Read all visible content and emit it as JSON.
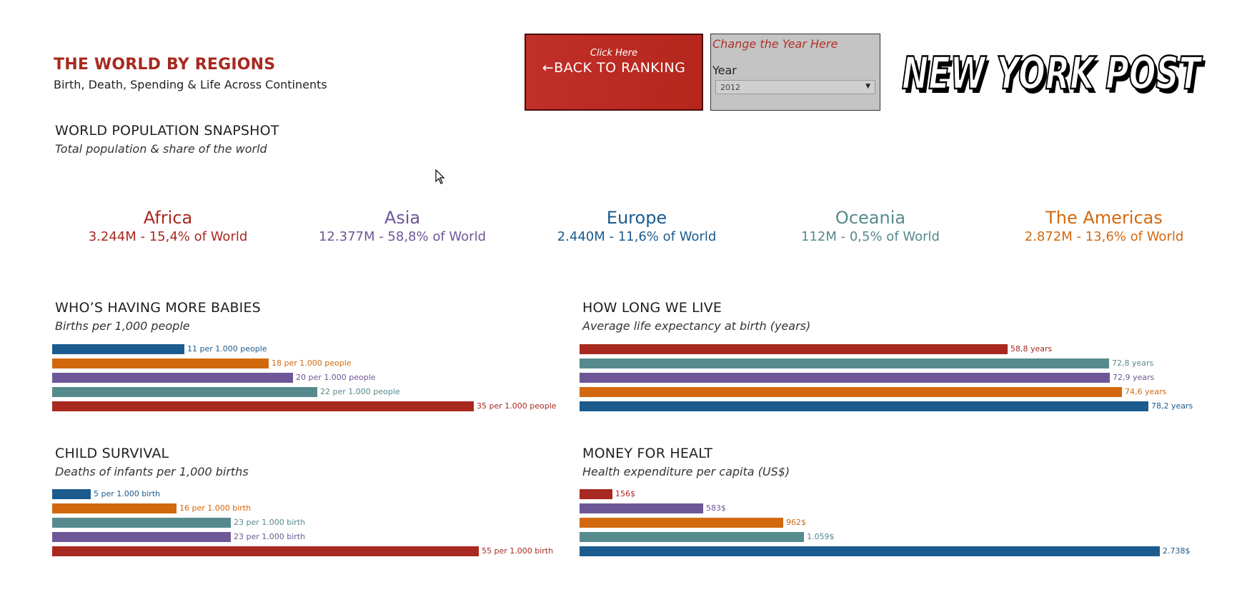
{
  "header": {
    "title": "THE WORLD BY REGIONS",
    "subtitle": "Birth, Death, Spending & Life Across Continents"
  },
  "back_button": {
    "hint": "Click Here",
    "label": "←BACK TO RANKING"
  },
  "year_filter": {
    "prompt": "Change the Year Here",
    "label": "Year",
    "selected": "2012"
  },
  "logo": {
    "text": "NEW YORK POST"
  },
  "colors": {
    "Africa": "#a8291f",
    "Asia": "#6e5796",
    "Europe": "#1b5b8e",
    "Oceania": "#568a8c",
    "The Americas": "#d2690e"
  },
  "snapshot": {
    "title": "WORLD POPULATION SNAPSHOT",
    "subtitle": "Total population & share of the world",
    "regions": [
      {
        "name": "Africa",
        "value": "3.244M - 15,4% of World"
      },
      {
        "name": "Asia",
        "value": "12.377M - 58,8% of World"
      },
      {
        "name": "Europe",
        "value": "2.440M - 11,6% of World"
      },
      {
        "name": "Oceania",
        "value": "112M - 0,5% of World"
      },
      {
        "name": "The Americas",
        "value": "2.872M - 13,6% of World"
      }
    ]
  },
  "chart_data": [
    {
      "type": "bar",
      "title": "WHO’S HAVING MORE BABIES",
      "subtitle": "Births per 1,000 people",
      "categories": [
        "Europe",
        "The Americas",
        "Asia",
        "Oceania",
        "Africa"
      ],
      "values": [
        11,
        18,
        20,
        22,
        35
      ],
      "labels": [
        "11 per 1.000 people",
        "18 per 1.000 people",
        "20 per 1.000 people",
        "22 per 1.000 people",
        "35 per 1.000 people"
      ]
    },
    {
      "type": "bar",
      "title": "HOW LONG WE LIVE",
      "subtitle": "Average life expectancy at birth (years)",
      "categories": [
        "Africa",
        "Oceania",
        "Asia",
        "The Americas",
        "Europe"
      ],
      "values": [
        58.8,
        72.8,
        72.9,
        74.6,
        78.2
      ],
      "labels": [
        "58,8 years",
        "72,8 years",
        "72,9 years",
        "74,6 years",
        "78,2 years"
      ]
    },
    {
      "type": "bar",
      "title": "CHILD SURVIVAL",
      "subtitle": "Deaths of infants per 1,000 births",
      "categories": [
        "Europe",
        "The Americas",
        "Oceania",
        "Asia",
        "Africa"
      ],
      "values": [
        5,
        16,
        23,
        23,
        55
      ],
      "labels": [
        "5 per 1.000 birth",
        "16 per 1.000 birth",
        "23 per 1.000 birth",
        "23 per 1.000 birth",
        "55 per 1.000 birth"
      ]
    },
    {
      "type": "bar",
      "title": "MONEY FOR HEALT",
      "subtitle": "Health expenditure per capita (US$)",
      "categories": [
        "Africa",
        "Asia",
        "The Americas",
        "Oceania",
        "Europe"
      ],
      "values": [
        156,
        583,
        962,
        1059,
        2738
      ],
      "labels": [
        "156$",
        "583$",
        "962$",
        "1.059$",
        "2.738$"
      ]
    }
  ]
}
